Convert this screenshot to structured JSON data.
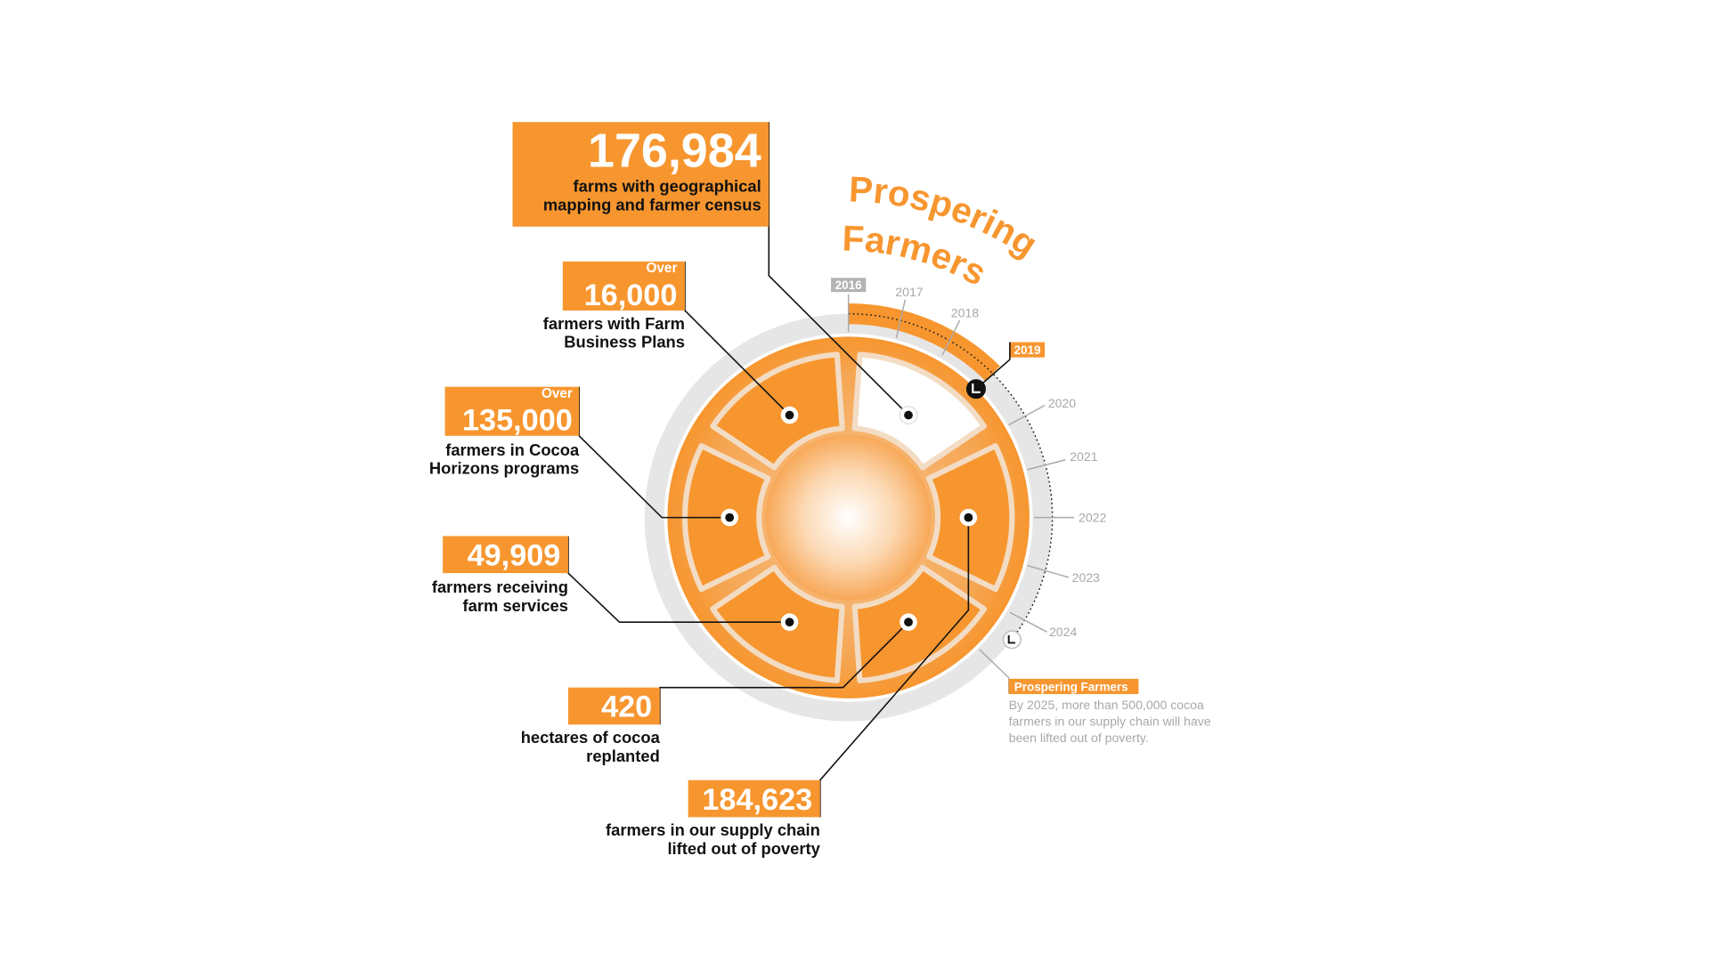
{
  "title": {
    "line1": "Prospering",
    "line2": "Farmers"
  },
  "colors": {
    "accent": "#f7962f",
    "ring": "#e6e6e6",
    "muted": "#a8a8a8",
    "text": "#111111"
  },
  "stats": [
    {
      "prefix": "",
      "value": "176,984",
      "caption": [
        "farms with geographical",
        "mapping and farmer census"
      ]
    },
    {
      "prefix": "Over",
      "value": "16,000",
      "caption": [
        "farmers with Farm",
        "Business Plans"
      ]
    },
    {
      "prefix": "Over",
      "value": "135,000",
      "caption": [
        "farmers in Cocoa",
        "Horizons programs"
      ]
    },
    {
      "prefix": "",
      "value": "49,909",
      "caption": [
        "farmers receiving",
        "farm services"
      ]
    },
    {
      "prefix": "",
      "value": "420",
      "caption": [
        "hectares of cocoa",
        "replanted"
      ]
    },
    {
      "prefix": "",
      "value": "184,623",
      "caption": [
        "farmers in our supply chain",
        "lifted out of poverty"
      ]
    }
  ],
  "timeline": {
    "years": [
      "2016",
      "2017",
      "2018",
      "2019",
      "2020",
      "2021",
      "2022",
      "2023",
      "2024"
    ],
    "start_year": "2016",
    "current_year": "2019",
    "icons": [
      "clock-icon-current",
      "clock-icon-target"
    ]
  },
  "legend": {
    "label": "Prospering Farmers",
    "description": [
      "By 2025, more than 500,000 cocoa",
      "farmers in our supply chain will have",
      "been lifted out of poverty."
    ]
  }
}
